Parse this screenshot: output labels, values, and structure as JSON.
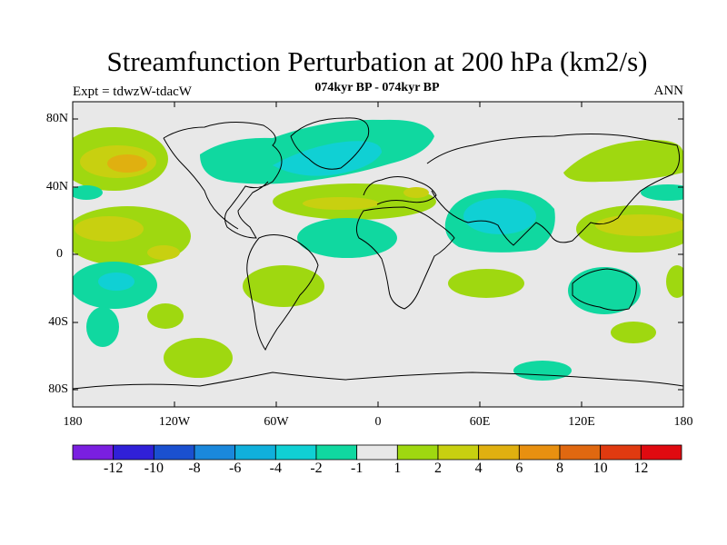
{
  "title": "Streamfunction Perturbation at 200 hPa (km2/s)",
  "expt_label": "Expt = tdwzW-tdacW",
  "period_label": "074kyr BP - 074kyr BP",
  "season_label": "ANN",
  "lat_ticks": [
    "80N",
    "40N",
    "0",
    "40S",
    "80S"
  ],
  "lon_ticks": [
    "180",
    "120W",
    "60W",
    "0",
    "60E",
    "120E",
    "180"
  ],
  "colorbar": {
    "colors": [
      "#7a1fe0",
      "#3020d8",
      "#1a50d0",
      "#1a88dc",
      "#10b0dc",
      "#10d0d4",
      "#10d8a0",
      "#e8e8e8",
      "#9fd810",
      "#c8d010",
      "#e0b010",
      "#e89010",
      "#e06810",
      "#e03a10",
      "#e00a10"
    ],
    "labels": [
      "-12",
      "-10",
      "-8",
      "-6",
      "-4",
      "-2",
      "-1",
      "1",
      "2",
      "4",
      "6",
      "8",
      "10",
      "12"
    ]
  },
  "colors": {
    "neutral": "#e8e8e8",
    "pos1": "#9fd810",
    "pos2": "#c8d010",
    "pos3": "#e0b010",
    "neg1": "#10d8a0",
    "neg2": "#10d0d4"
  }
}
